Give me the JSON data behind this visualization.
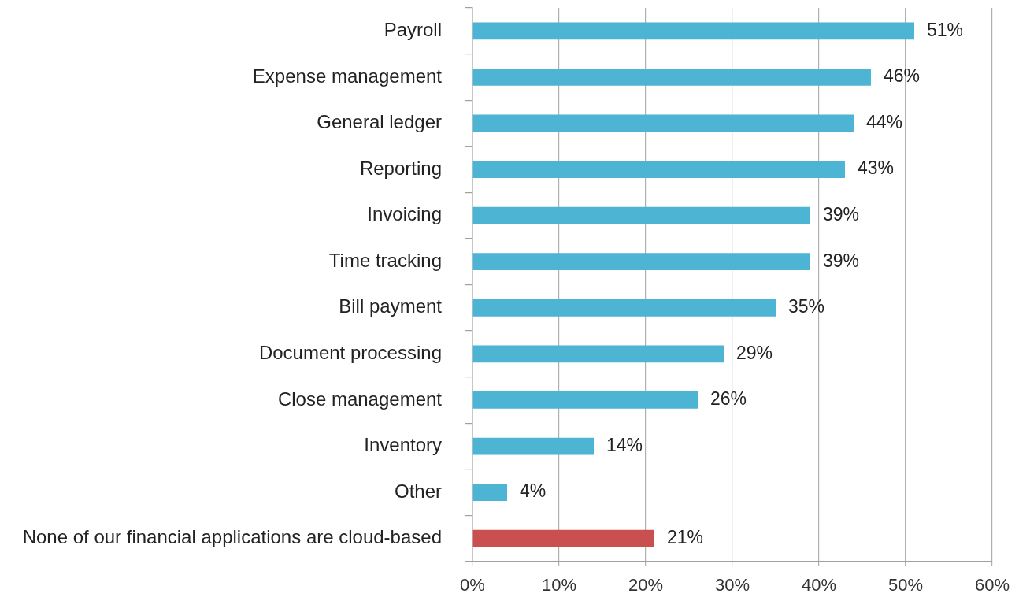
{
  "chart_data": {
    "type": "bar",
    "orientation": "horizontal",
    "categories": [
      "Payroll",
      "Expense management",
      "General ledger",
      "Reporting",
      "Invoicing",
      "Time tracking",
      "Bill payment",
      "Document processing",
      "Close management",
      "Inventory",
      "Other",
      "None of our financial applications are cloud-based"
    ],
    "values": [
      51,
      46,
      44,
      43,
      39,
      39,
      35,
      29,
      26,
      14,
      4,
      21
    ],
    "value_labels": [
      "51%",
      "46%",
      "44%",
      "43%",
      "39%",
      "39%",
      "35%",
      "29%",
      "26%",
      "14%",
      "4%",
      "21%"
    ],
    "colors": [
      "#4db4d4",
      "#4db4d4",
      "#4db4d4",
      "#4db4d4",
      "#4db4d4",
      "#4db4d4",
      "#4db4d4",
      "#4db4d4",
      "#4db4d4",
      "#4db4d4",
      "#4db4d4",
      "#c9504e"
    ],
    "xlim": [
      0,
      60
    ],
    "xticks": [
      {
        "value": 0,
        "label": "0%"
      },
      {
        "value": 10,
        "label": "10%"
      },
      {
        "value": 20,
        "label": "20%"
      },
      {
        "value": 30,
        "label": "30%"
      },
      {
        "value": 40,
        "label": "40%"
      },
      {
        "value": 50,
        "label": "50%"
      },
      {
        "value": 60,
        "label": "60%"
      }
    ],
    "grid": "x"
  }
}
